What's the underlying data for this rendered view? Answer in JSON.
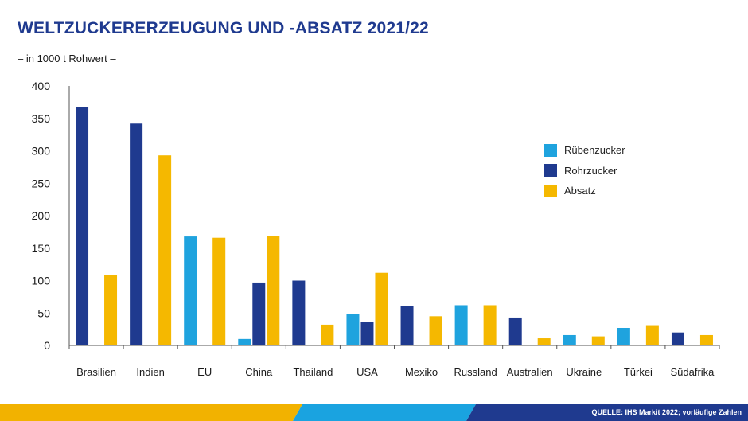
{
  "header": {
    "title": "WELTZUCKERERZEUGUNG UND -ABSATZ 2021/22",
    "subtitle": "– in 1000 t Rohwert –"
  },
  "footer": {
    "source": "QUELLE: IHS Markit 2022; vorläufige Zahlen",
    "colors": [
      "#f2b200",
      "#1aa3e0",
      "#1f3a8f"
    ]
  },
  "legend": [
    {
      "label": "Rübenzucker",
      "color": "#1fa3de"
    },
    {
      "label": "Rohrzucker",
      "color": "#1f3a8f"
    },
    {
      "label": "Absatz",
      "color": "#f5b800"
    }
  ],
  "chart_data": {
    "type": "bar",
    "title": "WELTZUCKERERZEUGUNG UND -ABSATZ 2021/22",
    "subtitle": "– in 1000 t Rohwert –",
    "categories": [
      "Brasilien",
      "Indien",
      "EU",
      "China",
      "Thailand",
      "USA",
      "Mexiko",
      "Russland",
      "Australien",
      "Ukraine",
      "Türkei",
      "Südafrika"
    ],
    "series": [
      {
        "name": "Rübenzucker",
        "color": "#1fa3de",
        "values": [
          0,
          0,
          168,
          10,
          0,
          49,
          0,
          62,
          0,
          16,
          27,
          0
        ]
      },
      {
        "name": "Rohrzucker",
        "color": "#1f3a8f",
        "values": [
          368,
          342,
          0,
          97,
          100,
          36,
          61,
          0,
          43,
          0,
          0,
          20
        ]
      },
      {
        "name": "Absatz",
        "color": "#f5b800",
        "values": [
          108,
          293,
          166,
          169,
          32,
          112,
          45,
          62,
          11,
          14,
          30,
          16
        ]
      }
    ],
    "yticks": [
      0,
      50,
      100,
      150,
      200,
      250,
      300,
      350,
      400
    ],
    "ylim": [
      0,
      400
    ],
    "grid": false,
    "legend_position": "right"
  }
}
